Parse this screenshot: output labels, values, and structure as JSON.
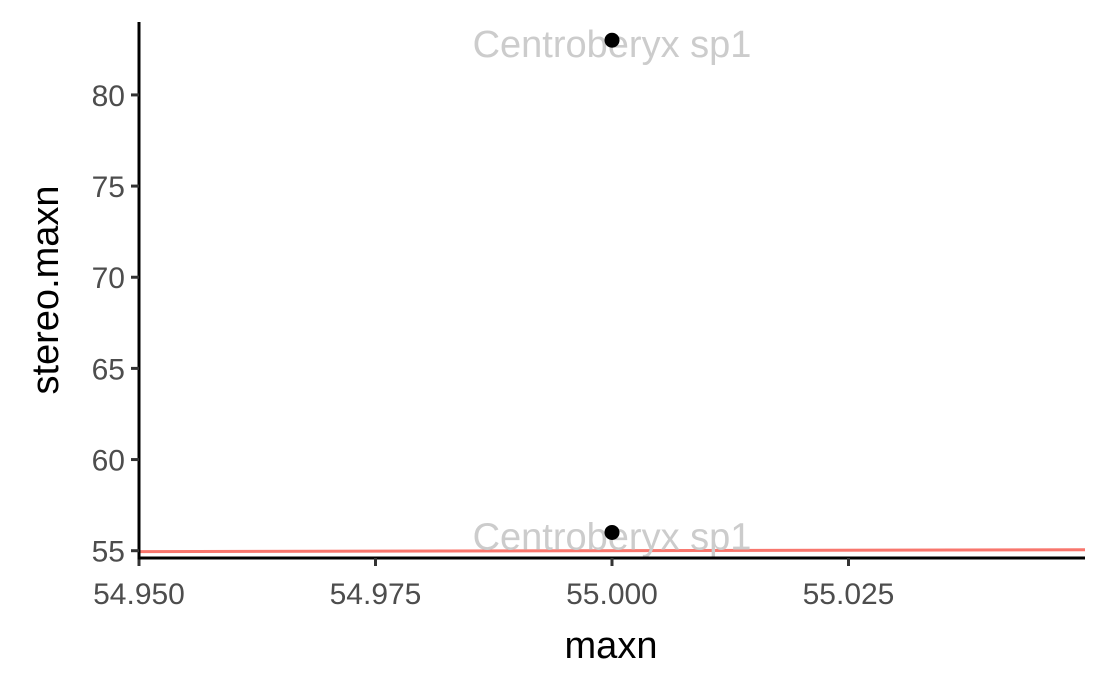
{
  "chart_data": {
    "type": "scatter",
    "title": "",
    "xlabel": "maxn",
    "ylabel": "stereo.maxn",
    "xlim": [
      54.95,
      55.05
    ],
    "ylim": [
      54.6,
      84.0
    ],
    "x_ticks": [
      54.95,
      54.975,
      55.0,
      55.025
    ],
    "x_tick_labels": [
      "54.950",
      "54.975",
      "55.000",
      "55.025"
    ],
    "y_ticks": [
      55,
      60,
      65,
      70,
      75,
      80
    ],
    "y_tick_labels": [
      "55",
      "60",
      "65",
      "70",
      "75",
      "80"
    ],
    "grid": false,
    "points": [
      {
        "x": 55.0,
        "y": 83,
        "label": "Centroberyx sp1"
      },
      {
        "x": 55.0,
        "y": 56,
        "label": "Centroberyx sp1"
      }
    ],
    "reference_line": {
      "type": "identity",
      "from": [
        54.95,
        54.95
      ],
      "to": [
        55.05,
        55.05
      ]
    },
    "colors": {
      "points": "#000000",
      "reference_line": "#f8766d",
      "point_labels": "#cccccc",
      "axis_line": "#000000",
      "tick_labels": "#4d4d4d"
    }
  }
}
